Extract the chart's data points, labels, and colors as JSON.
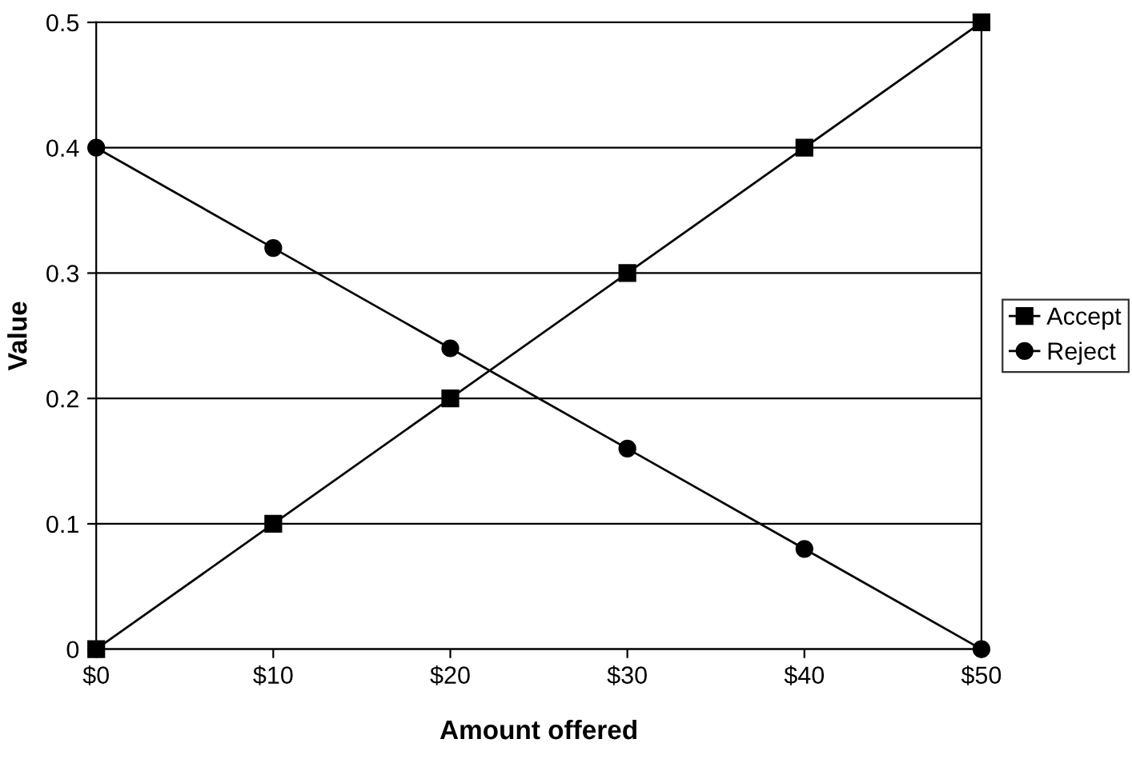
{
  "chart_data": {
    "type": "line",
    "xlabel": "Amount offered",
    "ylabel": "Value",
    "categories": [
      "$0",
      "$10",
      "$20",
      "$30",
      "$40",
      "$50"
    ],
    "series": [
      {
        "name": "Accept",
        "color": "#000000",
        "marker": "square",
        "values": [
          0,
          0.1,
          0.2,
          0.3,
          0.4,
          0.5
        ]
      },
      {
        "name": "Reject",
        "color": "#000000",
        "marker": "circle",
        "values": [
          0.4,
          0.32,
          0.24,
          0.16,
          0.08,
          0
        ]
      }
    ],
    "ylim": [
      0,
      0.5
    ],
    "yticks": [
      0,
      0.1,
      0.2,
      0.3,
      0.4,
      0.5
    ],
    "grid": "y",
    "legend": "right",
    "line_style": "solid"
  }
}
